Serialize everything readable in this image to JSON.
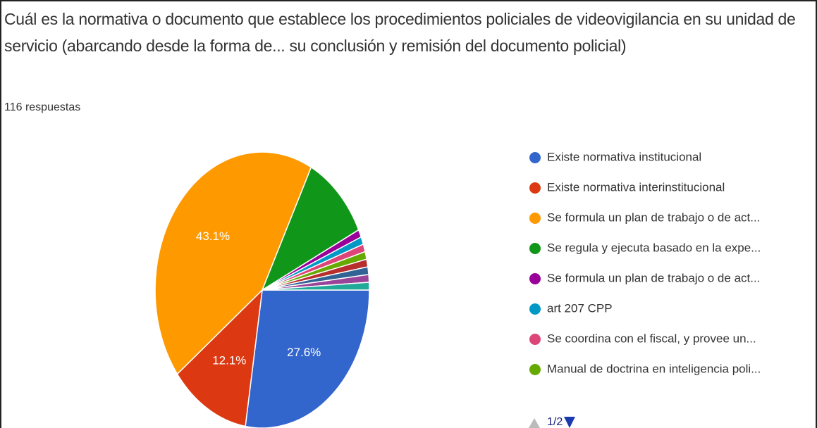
{
  "chart_data": {
    "type": "pie",
    "title": "Cuál es la normativa o documento que establece los procedimientos policiales de videovigilancia en su unidad de servicio (abarcando desde la forma de... su conclusión y remisión del documento policial)",
    "subtitle": "116 respuestas",
    "categories": [
      "Existe normativa institucional",
      "Existe normativa interinstitucional",
      "Se formula un plan de trabajo o de act...",
      "Se regula y ejecuta basado en la expe...",
      "Se formula un plan de trabajo o de act...",
      "art 207 CPP",
      "Se coordina con el fiscal, y provee un...",
      "Manual de doctrina en inteligencia poli...",
      null,
      null,
      null,
      null
    ],
    "values": [
      27.6,
      12.1,
      43.1,
      10.3,
      0.9,
      0.9,
      0.9,
      0.9,
      0.9,
      0.9,
      0.9,
      0.9
    ],
    "value_labels": [
      "27.6%",
      "12.1%",
      "43.1%",
      null,
      null,
      null,
      null,
      null,
      null,
      null,
      null,
      null
    ],
    "colors": [
      "#3366cc",
      "#dc3912",
      "#ff9900",
      "#109618",
      "#990099",
      "#0099c6",
      "#dd4477",
      "#66aa00",
      "#b82e2e",
      "#316395",
      "#994499",
      "#22aa99"
    ],
    "legend_position": "right",
    "legend_page": "1/2"
  }
}
